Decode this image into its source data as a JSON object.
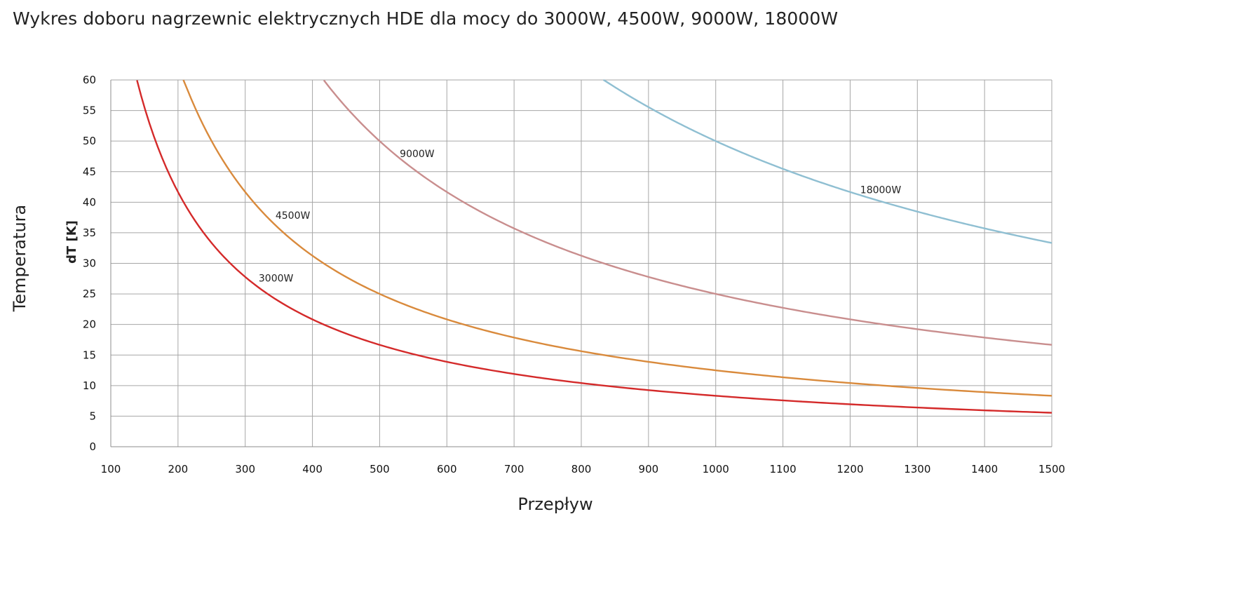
{
  "chart_data": {
    "type": "line",
    "title": "Wykres doboru nagrzewnic elektrycznych HDE dla mocy do 3000W, 4500W, 9000W, 18000W",
    "xlabel": "Przepływ",
    "ylabel": "dT [K]",
    "ylabel_outer": "Temperatura",
    "xlim": [
      100,
      1500
    ],
    "ylim": [
      0,
      60
    ],
    "x_ticks": [
      100,
      200,
      300,
      400,
      500,
      600,
      700,
      800,
      900,
      1000,
      1100,
      1200,
      1300,
      1400,
      1500
    ],
    "y_ticks": [
      0,
      5,
      10,
      15,
      20,
      25,
      30,
      35,
      40,
      45,
      50,
      55,
      60
    ],
    "grid": true,
    "series": [
      {
        "name": "3000W",
        "label": "3000W",
        "color": "#d42a2a",
        "k": 8333,
        "label_x": 320,
        "label_y": 27,
        "x": [
          139,
          150,
          175,
          200,
          250,
          300,
          400,
          500,
          600,
          700,
          800,
          900,
          1000,
          1100,
          1200,
          1300,
          1400,
          1500
        ],
        "y": [
          60,
          55.6,
          47.6,
          41.7,
          33.3,
          27.8,
          20.8,
          16.7,
          13.9,
          11.9,
          10.4,
          9.3,
          8.3,
          7.6,
          6.9,
          6.4,
          6.0,
          5.6
        ]
      },
      {
        "name": "4500W",
        "label": "4500W",
        "color": "#d98a3c",
        "k": 12500,
        "label_x": 345,
        "label_y": 37.3,
        "x": [
          208,
          250,
          300,
          350,
          400,
          500,
          600,
          700,
          800,
          900,
          1000,
          1100,
          1200,
          1300,
          1400,
          1500
        ],
        "y": [
          60,
          50,
          41.7,
          35.7,
          31.3,
          25.0,
          20.8,
          17.9,
          15.6,
          13.9,
          12.5,
          11.4,
          10.4,
          9.6,
          8.9,
          8.3
        ]
      },
      {
        "name": "9000W",
        "label": "9000W",
        "color": "#c98e8e",
        "k": 25000,
        "label_x": 530,
        "label_y": 47.4,
        "x": [
          417,
          450,
          500,
          550,
          600,
          700,
          800,
          900,
          1000,
          1100,
          1200,
          1300,
          1400,
          1500
        ],
        "y": [
          60,
          55.6,
          50,
          45.5,
          41.7,
          35.7,
          31.3,
          27.8,
          25.0,
          22.7,
          20.8,
          19.2,
          17.9,
          16.7
        ]
      },
      {
        "name": "18000W",
        "label": "18000W",
        "color": "#8fbfd2",
        "k": 50000,
        "label_x": 1215,
        "label_y": 41.5,
        "x": [
          833,
          900,
          1000,
          1100,
          1200,
          1300,
          1400,
          1500
        ],
        "y": [
          60,
          55.6,
          50,
          45.5,
          41.7,
          38.5,
          35.7,
          33.3
        ]
      }
    ]
  }
}
